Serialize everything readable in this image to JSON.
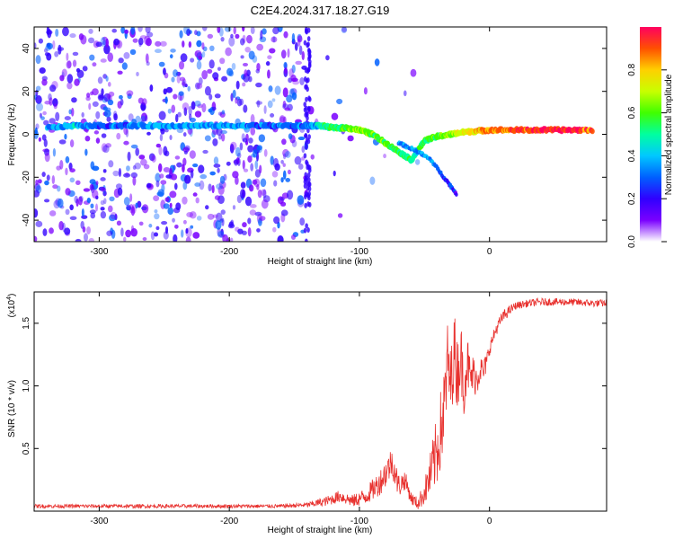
{
  "title": "C2E4.2024.317.18.27.G19",
  "colors": {
    "snr_line": "#e8322f",
    "scatter_point": "#7a2cff",
    "background": "#ffffff",
    "axis": "#000000"
  },
  "chart_data": [
    {
      "type": "heatmap",
      "name": "spectrogram",
      "title": "",
      "xlabel": "Height of straight line (km)",
      "ylabel": "Frequency (Hz)",
      "xlim": [
        -350,
        90
      ],
      "ylim": [
        -50,
        50
      ],
      "xticks": [
        "-300",
        "-200",
        "-100",
        "0"
      ],
      "xtick_values": [
        -300,
        -200,
        -100,
        0
      ],
      "yticks": [
        "-40",
        "-20",
        "0",
        "20",
        "40"
      ],
      "ytick_values": [
        -40,
        -20,
        0,
        20,
        40
      ],
      "colorbar": {
        "label": "Normalized spectral amplitude",
        "range": [
          0,
          1
        ],
        "ticks": [
          "0.0",
          "0.2",
          "0.4",
          "0.6",
          "0.8"
        ],
        "tick_values": [
          0.0,
          0.2,
          0.4,
          0.6,
          0.8
        ],
        "colormap": [
          "#ffffff",
          "#7a00ff",
          "#3000ff",
          "#0060ff",
          "#00c8ff",
          "#00ffa0",
          "#40ff00",
          "#c8ff00",
          "#ffd000",
          "#ff5000",
          "#ff0060"
        ]
      },
      "ridge": [
        {
          "x": -340,
          "y": 3,
          "amp": 0.35
        },
        {
          "x": -320,
          "y": 4,
          "amp": 0.4
        },
        {
          "x": -300,
          "y": 4,
          "amp": 0.3
        },
        {
          "x": -280,
          "y": 4,
          "amp": 0.3
        },
        {
          "x": -260,
          "y": 4,
          "amp": 0.35
        },
        {
          "x": -240,
          "y": 4,
          "amp": 0.35
        },
        {
          "x": -220,
          "y": 4,
          "amp": 0.35
        },
        {
          "x": -200,
          "y": 4,
          "amp": 0.35
        },
        {
          "x": -180,
          "y": 4,
          "amp": 0.3
        },
        {
          "x": -160,
          "y": 4,
          "amp": 0.3
        },
        {
          "x": -140,
          "y": 4,
          "amp": 0.3
        },
        {
          "x": -130,
          "y": 4,
          "amp": 0.45
        },
        {
          "x": -120,
          "y": 3,
          "amp": 0.55
        },
        {
          "x": -110,
          "y": 3,
          "amp": 0.6
        },
        {
          "x": -100,
          "y": 2,
          "amp": 0.65
        },
        {
          "x": -90,
          "y": 0,
          "amp": 0.6
        },
        {
          "x": -80,
          "y": -4,
          "amp": 0.6
        },
        {
          "x": -70,
          "y": -8,
          "amp": 0.55
        },
        {
          "x": -60,
          "y": -12,
          "amp": 0.5
        },
        {
          "x": -50,
          "y": -3,
          "amp": 0.55
        },
        {
          "x": -40,
          "y": -1,
          "amp": 0.6
        },
        {
          "x": -30,
          "y": 0,
          "amp": 0.65
        },
        {
          "x": -20,
          "y": 1,
          "amp": 0.75
        },
        {
          "x": -10,
          "y": 1.5,
          "amp": 0.8
        },
        {
          "x": 0,
          "y": 2,
          "amp": 0.85
        },
        {
          "x": 20,
          "y": 2,
          "amp": 0.9
        },
        {
          "x": 40,
          "y": 2,
          "amp": 0.95
        },
        {
          "x": 60,
          "y": 2,
          "amp": 0.95
        },
        {
          "x": 80,
          "y": 2,
          "amp": 0.9
        }
      ],
      "branch": [
        {
          "x": -70,
          "y": -4,
          "amp": 0.3
        },
        {
          "x": -55,
          "y": -8,
          "amp": 0.35
        },
        {
          "x": -45,
          "y": -12,
          "amp": 0.35
        },
        {
          "x": -35,
          "y": -20,
          "amp": 0.25
        },
        {
          "x": -25,
          "y": -28,
          "amp": 0.2
        }
      ]
    },
    {
      "type": "line",
      "name": "snr",
      "title": "",
      "xlabel": "Height of straight line (km)",
      "ylabel": "SNR (10 * v/v)",
      "multiplier_label": "(x10",
      "multiplier_exponent": "4",
      "multiplier_close": ")",
      "xlim": [
        -350,
        90
      ],
      "ylim": [
        0,
        1.75
      ],
      "xticks": [
        "-300",
        "-200",
        "-100",
        "0"
      ],
      "xtick_values": [
        -300,
        -200,
        -100,
        0
      ],
      "yticks": [
        "0.5",
        "1.0",
        "1.5"
      ],
      "ytick_values": [
        0.5,
        1.0,
        1.5
      ],
      "series": [
        {
          "x": [
            -350,
            -300,
            -250,
            -200,
            -160,
            -140,
            -125,
            -115,
            -105,
            -95,
            -85,
            -80,
            -75,
            -70,
            -65,
            -60,
            -55,
            -50,
            -45,
            -40,
            -35,
            -32,
            -30,
            -27,
            -25,
            -22,
            -20,
            -17,
            -15,
            -12,
            -10,
            -7,
            -5,
            -2,
            0,
            5,
            10,
            15,
            20,
            30,
            40,
            60,
            80,
            90
          ],
          "y": [
            0.04,
            0.04,
            0.04,
            0.04,
            0.04,
            0.05,
            0.08,
            0.12,
            0.08,
            0.12,
            0.22,
            0.3,
            0.4,
            0.2,
            0.25,
            0.1,
            0.06,
            0.15,
            0.3,
            0.5,
            0.8,
            1.2,
            1.0,
            1.3,
            1.1,
            1.25,
            1.0,
            1.2,
            1.05,
            1.1,
            1.05,
            1.15,
            1.1,
            1.2,
            1.3,
            1.45,
            1.55,
            1.6,
            1.64,
            1.66,
            1.67,
            1.67,
            1.66,
            1.66
          ],
          "noise": [
            0.015,
            0.015,
            0.015,
            0.015,
            0.015,
            0.02,
            0.04,
            0.05,
            0.05,
            0.07,
            0.1,
            0.12,
            0.12,
            0.1,
            0.08,
            0.05,
            0.05,
            0.1,
            0.2,
            0.3,
            0.35,
            0.35,
            0.3,
            0.3,
            0.3,
            0.28,
            0.25,
            0.22,
            0.2,
            0.15,
            0.15,
            0.12,
            0.1,
            0.08,
            0.06,
            0.05,
            0.05,
            0.04,
            0.03,
            0.03,
            0.03,
            0.03,
            0.03,
            0.03
          ]
        }
      ]
    }
  ]
}
